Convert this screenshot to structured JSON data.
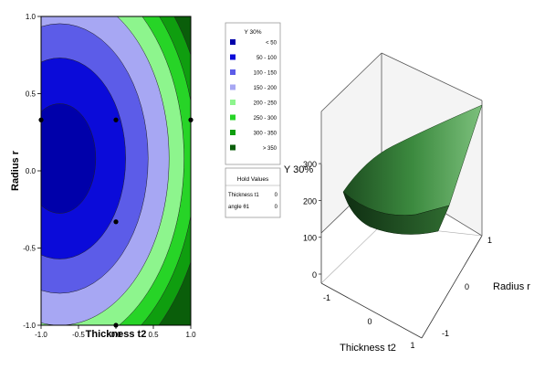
{
  "chart_data": [
    {
      "type": "contour",
      "xlabel": "Thickness t2",
      "ylabel": "Radius r",
      "xlim": [
        -1.0,
        1.0
      ],
      "ylim": [
        -1.0,
        1.0
      ],
      "x_ticks": [
        "-1.0",
        "-0.5",
        "0.0",
        "0.5",
        "1.0"
      ],
      "y_ticks": [
        "1.0",
        "0.5",
        "0.0",
        "-0.5",
        "-1.0"
      ],
      "center": [
        -0.75,
        0.08
      ],
      "level_radii": [
        0.48,
        0.88,
        1.18,
        1.46,
        1.66,
        1.82,
        1.97
      ],
      "design_points": [
        {
          "x": -1.0,
          "y": 0.33
        },
        {
          "x": 0.0,
          "y": 0.33
        },
        {
          "x": 1.0,
          "y": 0.33
        },
        {
          "x": 0.0,
          "y": -0.33
        },
        {
          "x": 0.0,
          "y": -1.0
        }
      ],
      "legend": {
        "title": "Y 30%",
        "entries": [
          {
            "label": "<  50",
            "color": "#0000aa"
          },
          {
            "label": "50  -  100",
            "color": "#0b0bd9"
          },
          {
            "label": "100  -  150",
            "color": "#5c5ce8"
          },
          {
            "label": "150  -  200",
            "color": "#a7a7f3"
          },
          {
            "label": "200  -  250",
            "color": "#8df58d"
          },
          {
            "label": "250  -  300",
            "color": "#27d427"
          },
          {
            "label": "300  -  350",
            "color": "#0f9e0f"
          },
          {
            "label": ">  350",
            "color": "#0a5e0a"
          }
        ]
      },
      "hold_values": {
        "title": "Hold Values",
        "rows": [
          {
            "name": "Thickness t1",
            "value": "0"
          },
          {
            "name": "angle θ1",
            "value": "0"
          }
        ]
      }
    },
    {
      "type": "surface",
      "zlabel": "Y 30%",
      "xlabel": "Thickness t2",
      "ylabel": "Radius r",
      "z_ticks": [
        "300",
        "200",
        "100",
        "0"
      ],
      "x_ticks": [
        "-1",
        "0",
        "1"
      ],
      "y_ticks": [
        "1",
        "0",
        "-1"
      ],
      "corner_values": {
        "x_-1_r_1": 210,
        "x_1_r_1": 240,
        "x_-1_r_-1": 150,
        "x_1_r_-1": 340
      },
      "surface_color": "#2e7d32"
    }
  ]
}
